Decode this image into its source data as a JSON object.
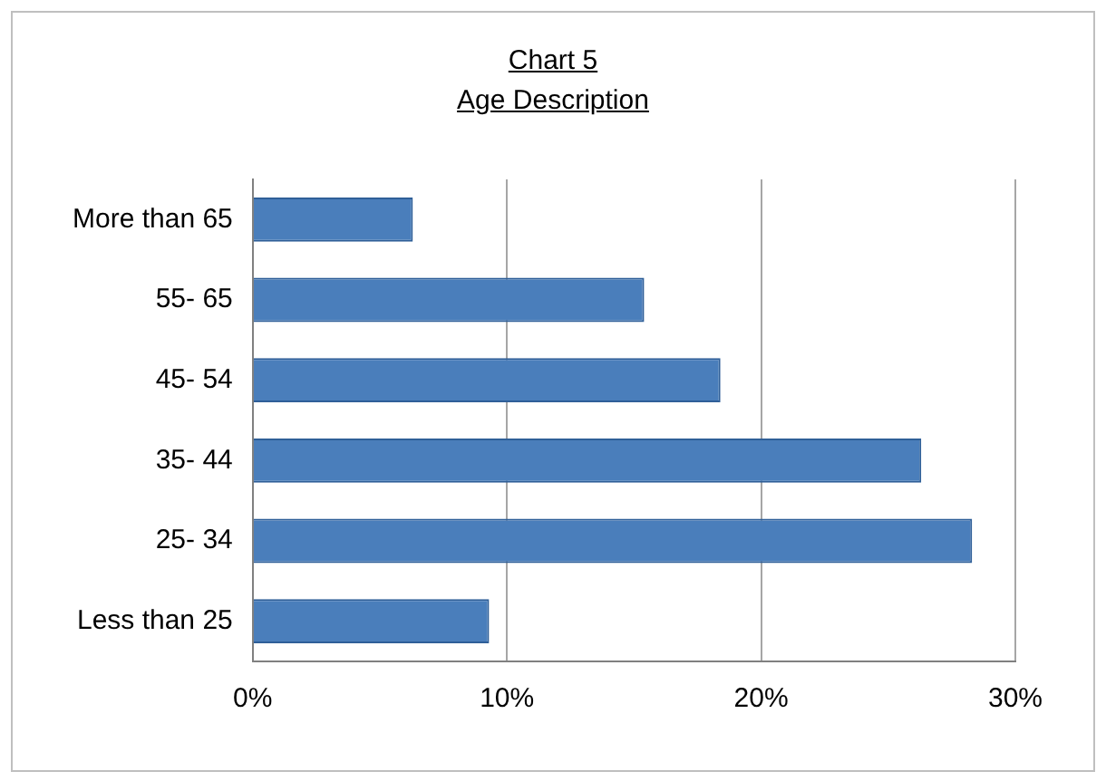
{
  "chart_data": {
    "type": "bar",
    "orientation": "horizontal",
    "title": "Chart 5",
    "subtitle": "Age Description",
    "categories": [
      "More than 65",
      "55- 65",
      "45- 54",
      "35- 44",
      "25- 34",
      "Less than 25"
    ],
    "values": [
      6.3,
      15.4,
      18.4,
      26.3,
      28.3,
      9.3
    ],
    "color": "#4a7ebb",
    "xlim": [
      0,
      30
    ],
    "xticks": [
      {
        "value": 0,
        "label": "0%"
      },
      {
        "value": 10,
        "label": "10%"
      },
      {
        "value": 20,
        "label": "20%"
      },
      {
        "value": 30,
        "label": "30%"
      }
    ],
    "grid": "x",
    "legend": false
  }
}
